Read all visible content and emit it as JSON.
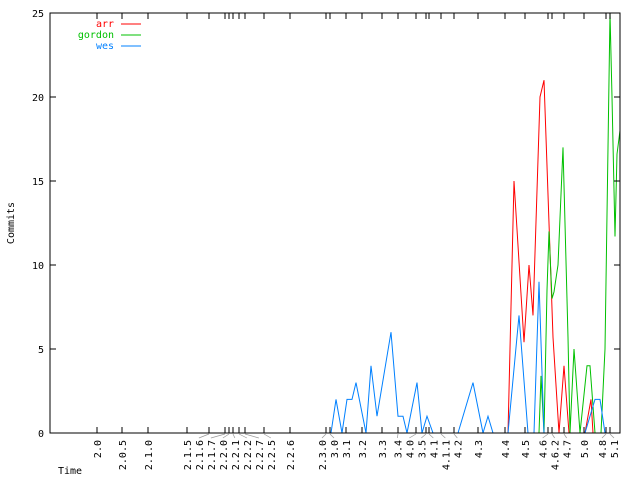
{
  "chart_data": {
    "type": "line",
    "title": "",
    "xlabel": "Time",
    "ylabel": "Commits",
    "xlim": [
      0,
      114
    ],
    "ylim": [
      0,
      25
    ],
    "yticks": [
      0,
      5,
      10,
      15,
      20,
      25
    ],
    "grid": false,
    "legend_position": "top-left",
    "xticks": [
      {
        "x": 9.4,
        "label": "2.0"
      },
      {
        "x": 14.4,
        "label": "2.0.5"
      },
      {
        "x": 19.6,
        "label": "2.1.0"
      },
      {
        "x": 27.4,
        "label": "2.1.5"
      },
      {
        "x": 31.8,
        "label": "2.1.6"
      },
      {
        "x": 35.0,
        "label": "2.1.7"
      },
      {
        "x": 35.8,
        "label": "2.2.0"
      },
      {
        "x": 36.6,
        "label": "2.2.1"
      },
      {
        "x": 37.8,
        "label": "2.2.2"
      },
      {
        "x": 39.0,
        "label": "2.2.7"
      },
      {
        "x": 42.8,
        "label": "2.2.5"
      },
      {
        "x": 48.0,
        "label": "2.2.6"
      },
      {
        "x": 55.2,
        "label": "2.3.0"
      },
      {
        "x": 56.0,
        "label": "3.0"
      },
      {
        "x": 59.2,
        "label": "3.1"
      },
      {
        "x": 62.4,
        "label": "3.2"
      },
      {
        "x": 66.4,
        "label": "3.3"
      },
      {
        "x": 69.6,
        "label": "3.4"
      },
      {
        "x": 73.2,
        "label": "4.0"
      },
      {
        "x": 75.2,
        "label": "3.5"
      },
      {
        "x": 75.8,
        "label": "4.1"
      },
      {
        "x": 78.2,
        "label": "4.1.1"
      },
      {
        "x": 80.8,
        "label": "4.2"
      },
      {
        "x": 85.6,
        "label": "4.3"
      },
      {
        "x": 91.0,
        "label": "4.4"
      },
      {
        "x": 95.0,
        "label": "4.5"
      },
      {
        "x": 99.6,
        "label": "4.6"
      },
      {
        "x": 100.4,
        "label": "4.6.2"
      },
      {
        "x": 102.8,
        "label": "4.7"
      },
      {
        "x": 106.8,
        "label": "5.0"
      },
      {
        "x": 111.2,
        "label": "4.8"
      },
      {
        "x": 112.0,
        "label": "5.1"
      }
    ],
    "series": [
      {
        "name": "arr",
        "color": "#ff0000",
        "x": [
          0,
          91.6,
          92.8,
          94.8,
          95.8,
          96.6,
          98,
          98.8,
          100.6,
          101.8,
          102.8,
          103.8,
          107,
          108.2,
          108.6,
          114
        ],
        "y": [
          0,
          0,
          15,
          5.4,
          10,
          7,
          20,
          21,
          5.7,
          0,
          4,
          0,
          0,
          2,
          0,
          0
        ]
      },
      {
        "name": "gordon",
        "color": "#00c000",
        "x": [
          0,
          97.8,
          98.2,
          98.8,
          99.4,
          99.8,
          100.4,
          100.8,
          101.6,
          102.6,
          103.6,
          104,
          104.8,
          106,
          107.4,
          108,
          109,
          110.2,
          111,
          111.4,
          112,
          112.4,
          113,
          113.4,
          114
        ],
        "y": [
          0,
          0,
          3.4,
          0,
          8.5,
          12,
          8,
          8.4,
          10,
          17,
          5.7,
          0,
          5,
          0,
          4,
          4,
          0,
          0,
          5,
          13,
          25,
          20,
          11.7,
          16.6,
          18
        ]
      },
      {
        "name": "wes",
        "color": "#0080ff",
        "x": [
          0,
          56.2,
          57.2,
          58.4,
          59.4,
          60.4,
          61.2,
          63.2,
          64.2,
          65.4,
          68.2,
          69.6,
          70.6,
          71.4,
          73.4,
          74.4,
          75.4,
          76.6,
          81.6,
          84.6,
          86.6,
          87.6,
          88.6,
          91.6,
          93.8,
          95.6,
          96.8,
          97.8,
          98.8,
          107,
          109,
          110,
          111,
          114
        ],
        "y": [
          0,
          0,
          2,
          0,
          2,
          2,
          3,
          0,
          4,
          1,
          6,
          1,
          1,
          0,
          3,
          0,
          1,
          0,
          0,
          3,
          0,
          1,
          0,
          0,
          7,
          0,
          0,
          9,
          0,
          0,
          2,
          2,
          0,
          0
        ]
      }
    ]
  }
}
